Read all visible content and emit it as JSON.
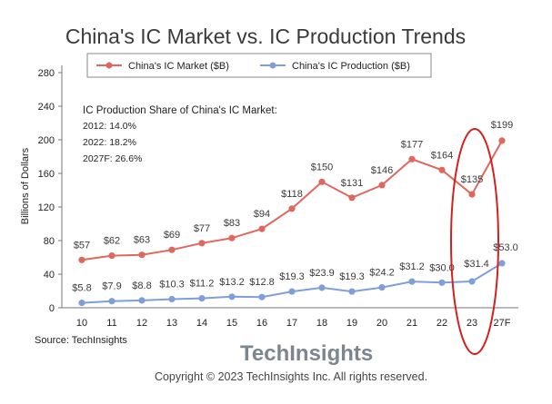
{
  "chart_data": {
    "type": "line",
    "title": "China's IC Market vs. IC Production Trends",
    "ylabel": "Billions of Dollars",
    "xlabel": "",
    "categories": [
      "10",
      "11",
      "12",
      "13",
      "14",
      "15",
      "16",
      "17",
      "18",
      "19",
      "20",
      "21",
      "22",
      "23",
      "27F"
    ],
    "ylim": [
      0,
      280
    ],
    "yticks": [
      0,
      40,
      80,
      120,
      160,
      200,
      240,
      280
    ],
    "grid": false,
    "legend_position": "top",
    "series": [
      {
        "name": "China's IC Market ($B)",
        "color": "#e0675e",
        "values": [
          57,
          62,
          63,
          69,
          77,
          83,
          94,
          118,
          150,
          131,
          146,
          177,
          164,
          135,
          199
        ],
        "labels": [
          "$57",
          "$62",
          "$63",
          "$69",
          "$77",
          "$83",
          "$94",
          "$118",
          "$150",
          "$131",
          "$146",
          "$177",
          "$164",
          "$135",
          "$199"
        ]
      },
      {
        "name": "China's IC Production ($B)",
        "color": "#7f9fd8",
        "values": [
          5.8,
          7.9,
          8.8,
          10.3,
          11.2,
          13.2,
          12.8,
          19.3,
          23.9,
          19.3,
          24.2,
          31.2,
          30.0,
          31.4,
          53.0
        ],
        "labels": [
          "$5.8",
          "$7.9",
          "$8.8",
          "$10.3",
          "$11.2",
          "$13.2",
          "$12.8",
          "$19.3",
          "$23.9",
          "$19.3",
          "$24.2",
          "$31.2",
          "$30.0",
          "$31.4",
          "$53.0"
        ]
      }
    ],
    "annotation": {
      "heading": "IC Production Share of China's IC Market:",
      "lines": [
        "2012: 14.0%",
        "2022: 18.2%",
        "2027F: 26.6%"
      ]
    },
    "highlight": {
      "category": "23",
      "shape": "ellipse",
      "color": "#d42020"
    },
    "source": "Source: TechInsights"
  },
  "footer": {
    "brand_part1": "Tech",
    "brand_part2": "Insights",
    "brand_color": "#7d8590",
    "copyright": "Copyright © 2023 TechInsights Inc.  All rights reserved."
  }
}
